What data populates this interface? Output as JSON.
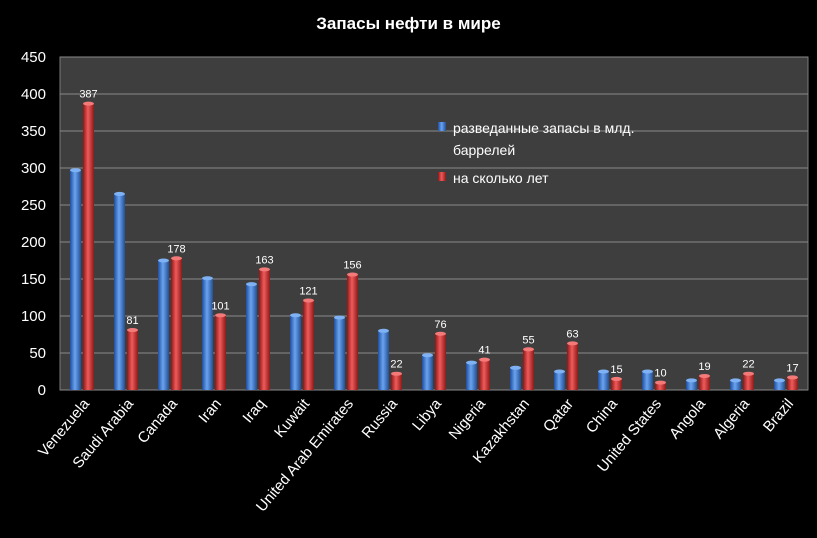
{
  "chart_data": {
    "type": "bar",
    "title": "Запасы нефти в мире",
    "xlabel": "",
    "ylabel": "",
    "ylim": [
      0,
      450
    ],
    "yticks": [
      "0",
      "50",
      "100",
      "150",
      "200",
      "250",
      "300",
      "350",
      "400",
      "450"
    ],
    "grid": true,
    "legend_position": "top-right",
    "categories": [
      "Venezuela",
      "Saudi Arabia",
      "Canada",
      "Iran",
      "Iraq",
      "Kuwait",
      "United Arab Emirates",
      "Russia",
      "Libya",
      "Nigeria",
      "Kazakhstan",
      "Qatar",
      "China",
      "United States",
      "Angola",
      "Algeria",
      "Brazil"
    ],
    "series": [
      {
        "name": "разведанные запасы в млд. баррелей",
        "color": "#3f7fd6",
        "values": [
          297,
          265,
          175,
          151,
          143,
          101,
          98,
          80,
          47,
          37,
          30,
          25,
          25,
          25,
          13,
          13,
          13
        ],
        "labels_shown": false
      },
      {
        "name": "на сколько лет",
        "color": "#d93a3a",
        "values": [
          387,
          81,
          178,
          101,
          163,
          121,
          156,
          22,
          76,
          41,
          55,
          63,
          15,
          10,
          19,
          22,
          17
        ],
        "labels_shown": true
      }
    ]
  }
}
